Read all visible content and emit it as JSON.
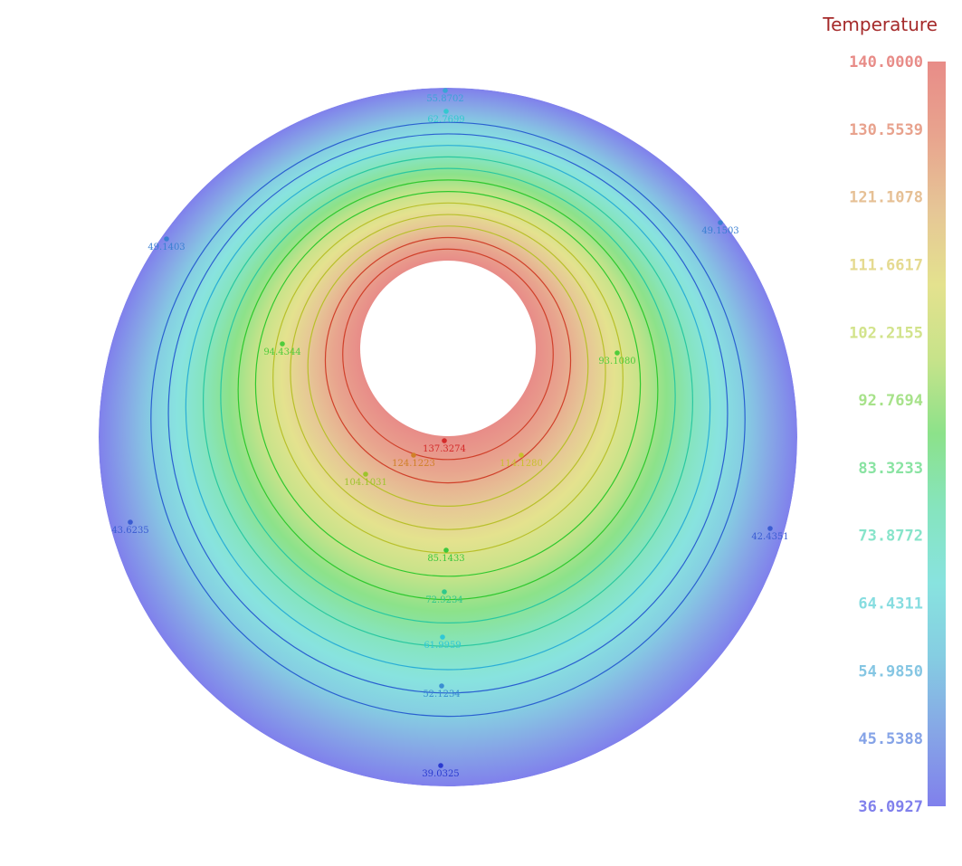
{
  "chart_data": {
    "type": "heatmap",
    "shape": "annulus",
    "colorbar": {
      "title": "Temperature",
      "title_color": "#a52a2a",
      "min": 36.0927,
      "max": 140.0,
      "ticks": [
        "140.0000",
        "130.5539",
        "121.1078",
        "111.6617",
        "102.2155",
        "92.7694",
        "83.3233",
        "73.8772",
        "64.4311",
        "54.9850",
        "45.5388",
        "36.0927"
      ],
      "colorscale": [
        [
          0.0,
          "#8080ec"
        ],
        [
          0.1,
          "#86a6e6"
        ],
        [
          0.2,
          "#85cde2"
        ],
        [
          0.3,
          "#88e3df"
        ],
        [
          0.4,
          "#86e4be"
        ],
        [
          0.5,
          "#8ce28a"
        ],
        [
          0.6,
          "#c7e38a"
        ],
        [
          0.7,
          "#e4e28e"
        ],
        [
          0.8,
          "#e6c696"
        ],
        [
          0.9,
          "#e8a48e"
        ],
        [
          1.0,
          "#e88c88"
        ]
      ]
    },
    "points": [
      {
        "label": "55.8702",
        "value": 55.8702,
        "color": "#3aa3d6"
      },
      {
        "label": "62.7699",
        "value": 62.7699,
        "color": "#34c8d0"
      },
      {
        "label": "49.1403",
        "value": 49.1403,
        "color": "#3a7fd2"
      },
      {
        "label": "49.1503",
        "value": 49.1503,
        "color": "#3a7fd2"
      },
      {
        "label": "94.4344",
        "value": 94.4344,
        "color": "#4fcc3a"
      },
      {
        "label": "93.1080",
        "value": 93.108,
        "color": "#4fcc3a"
      },
      {
        "label": "137.3274",
        "value": 137.3274,
        "color": "#d42a2a"
      },
      {
        "label": "124.1223",
        "value": 124.1223,
        "color": "#d08028"
      },
      {
        "label": "114.1280",
        "value": 114.128,
        "color": "#c8c030"
      },
      {
        "label": "104.1031",
        "value": 104.1031,
        "color": "#9cc42c"
      },
      {
        "label": "43.6235",
        "value": 43.6235,
        "color": "#3a5cd2"
      },
      {
        "label": "42.4351",
        "value": 42.4351,
        "color": "#3a5cd2"
      },
      {
        "label": "85.1433",
        "value": 85.1433,
        "color": "#3cc83c"
      },
      {
        "label": "72.9234",
        "value": 72.9234,
        "color": "#30c88c"
      },
      {
        "label": "61.9959",
        "value": 61.9959,
        "color": "#30c8d6"
      },
      {
        "label": "52.1234",
        "value": 52.1234,
        "color": "#3a8ed2"
      },
      {
        "label": "39.0325",
        "value": 39.0325,
        "color": "#2a3ad0"
      }
    ],
    "contour_levels": [
      132,
      124,
      116,
      108,
      100,
      92,
      84,
      76,
      68,
      60,
      52,
      44
    ]
  }
}
